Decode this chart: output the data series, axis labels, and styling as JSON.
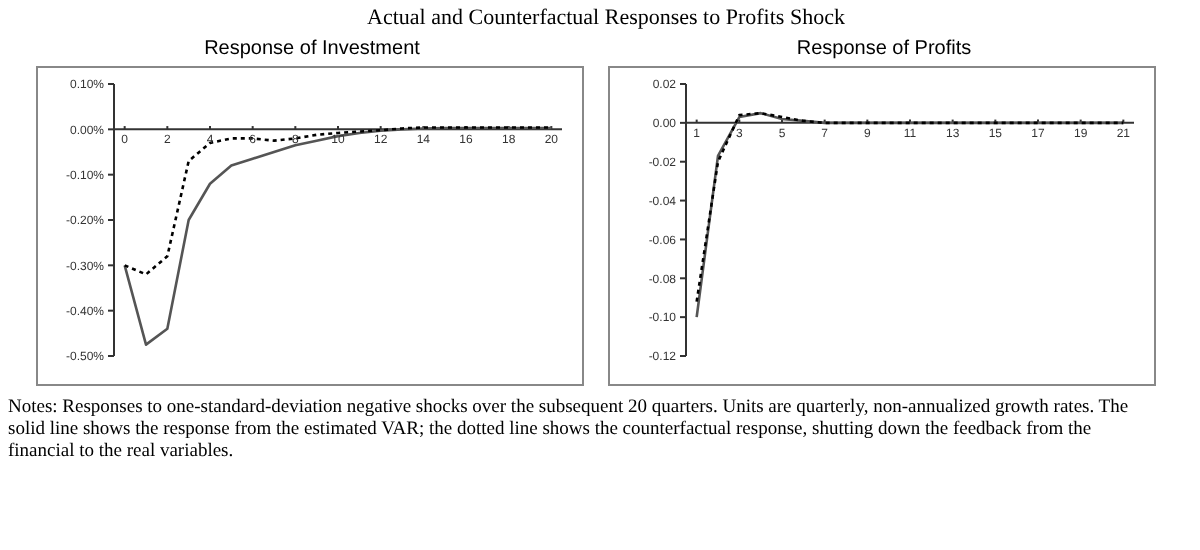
{
  "chart_data": [
    {
      "type": "line",
      "title": "Response of Investment",
      "annotations": [
        "Actual and Counterfactual Responses to Profits Shock",
        "Notes:  Responses to one-standard-deviation negative shocks over the subsequent 20 quarters.  Units are quarterly, non-annualized growth rates.  The solid line shows the response from the estimated VAR; the dotted line shows the counterfactual response, shutting down the feedback from the financial to the real variables."
      ],
      "x": [
        0,
        1,
        2,
        3,
        4,
        5,
        6,
        7,
        8,
        9,
        10,
        11,
        12,
        13,
        14,
        15,
        16,
        17,
        18,
        19,
        20
      ],
      "series": [
        {
          "color": "#555555",
          "line_style": "solid",
          "values": [
            -0.3,
            -0.475,
            -0.44,
            -0.2,
            -0.12,
            -0.08,
            -0.065,
            -0.05,
            -0.035,
            -0.025,
            -0.015,
            -0.008,
            -0.003,
            0.0,
            0.002,
            0.003,
            0.003,
            0.003,
            0.003,
            0.003,
            0.003
          ]
        },
        {
          "color": "#000000",
          "line_style": "dotted",
          "values": [
            -0.3,
            -0.32,
            -0.28,
            -0.07,
            -0.03,
            -0.02,
            -0.02,
            -0.025,
            -0.02,
            -0.012,
            -0.008,
            -0.005,
            -0.002,
            0.002,
            0.004,
            0.004,
            0.004,
            0.004,
            0.004,
            0.004,
            0.004
          ]
        }
      ],
      "xlim": [
        -0.5,
        20.5
      ],
      "xticks": [
        0,
        2,
        4,
        6,
        8,
        10,
        12,
        14,
        16,
        18,
        20
      ],
      "ylim": [
        -0.5,
        0.1
      ],
      "yticks": [
        {
          "value": 0.1,
          "label": "0.10%"
        },
        {
          "value": 0,
          "label": "0.00%"
        },
        {
          "value": -0.1,
          "label": "-0.10%"
        },
        {
          "value": -0.2,
          "label": "-0.20%"
        },
        {
          "value": -0.3,
          "label": "-0.30%"
        },
        {
          "value": -0.4,
          "label": "-0.40%"
        },
        {
          "value": -0.5,
          "label": "-0.50%"
        }
      ],
      "grid": false,
      "marker": "none"
    },
    {
      "type": "line",
      "title": "Response of Profits",
      "x": [
        1,
        2,
        3,
        4,
        5,
        6,
        7,
        8,
        9,
        10,
        11,
        12,
        13,
        14,
        15,
        16,
        17,
        18,
        19,
        20,
        21
      ],
      "series": [
        {
          "color": "#555555",
          "line_style": "solid",
          "values": [
            -0.1,
            -0.017,
            0.003,
            0.005,
            0.002,
            0.001,
            0,
            0,
            0,
            0,
            0,
            0,
            0,
            0,
            0,
            0,
            0,
            0,
            0,
            0,
            0
          ]
        },
        {
          "color": "#000000",
          "line_style": "dotted",
          "values": [
            -0.092,
            -0.02,
            0.004,
            0.005,
            0.003,
            0.001,
            0,
            0,
            0,
            0,
            0,
            0,
            0,
            0,
            0,
            0,
            0,
            0,
            0,
            0,
            0
          ]
        }
      ],
      "xlim": [
        0.5,
        21.5
      ],
      "xticks": [
        1,
        3,
        5,
        7,
        9,
        11,
        13,
        15,
        17,
        19,
        21
      ],
      "ylim": [
        -0.12,
        0.02
      ],
      "yticks": [
        0.02,
        {
          "value": 0,
          "label": "0.00"
        },
        -0.02,
        -0.04,
        -0.06,
        -0.08,
        {
          "value": -0.1,
          "label": "-0.10"
        },
        -0.12
      ],
      "grid": false,
      "marker": "none"
    }
  ]
}
